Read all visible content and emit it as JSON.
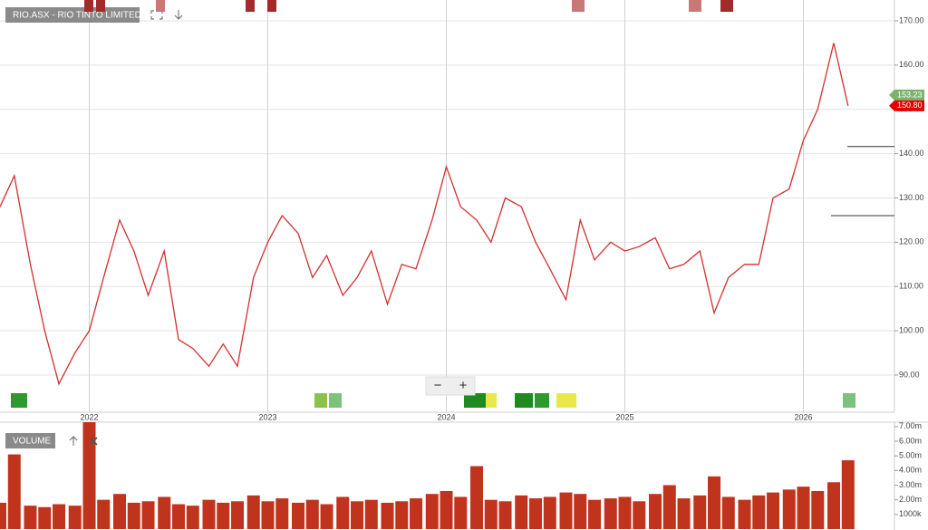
{
  "chart_data": [
    {
      "type": "line",
      "title": "RIO.ASX - RIO TINTO LIMITED",
      "x": [
        2021.5,
        2021.58,
        2021.67,
        2021.75,
        2021.83,
        2021.92,
        2022,
        2022.08,
        2022.17,
        2022.25,
        2022.33,
        2022.42,
        2022.5,
        2022.58,
        2022.67,
        2022.75,
        2022.83,
        2022.92,
        2023,
        2023.08,
        2023.17,
        2023.25,
        2023.33,
        2023.42,
        2023.5,
        2023.58,
        2023.67,
        2023.75,
        2023.83,
        2023.92,
        2024,
        2024.08,
        2024.17,
        2024.25,
        2024.33,
        2024.42,
        2024.5,
        2024.58,
        2024.67,
        2024.75,
        2024.83,
        2024.92,
        2025,
        2025.08,
        2025.17,
        2025.25,
        2025.33,
        2025.42,
        2025.5,
        2025.58,
        2025.67,
        2025.75,
        2025.83,
        2025.92,
        2026,
        2026.08,
        2026.17,
        2026.25
      ],
      "series": [
        {
          "color": "#d32f2f",
          "values": [
            128,
            135,
            115,
            100,
            88,
            95,
            100,
            112,
            125,
            118,
            108,
            118,
            98,
            96,
            92,
            97,
            92,
            112,
            120,
            126,
            122,
            112,
            117,
            108,
            112,
            118,
            106,
            115,
            114,
            125,
            137,
            128,
            125,
            120,
            130,
            128,
            120,
            114,
            107,
            125,
            116,
            120,
            118,
            119,
            121,
            114,
            115,
            118,
            104,
            112,
            115,
            115,
            130,
            132,
            143,
            150,
            165,
            150.8
          ]
        }
      ],
      "xlim": [
        2021.5,
        2026.51
      ],
      "xticks": [
        2022,
        2023,
        2024,
        2025,
        2026
      ],
      "ylim": [
        81.6,
        174.7
      ],
      "yticks": [
        {
          "value": 90,
          "label": "90.00"
        },
        {
          "value": 100,
          "label": "100.00"
        },
        {
          "value": 110,
          "label": "110.00"
        },
        {
          "value": 120,
          "label": "120.00"
        },
        {
          "value": 130,
          "label": "130.00"
        },
        {
          "value": 140,
          "label": "140.00"
        },
        {
          "value": 150,
          "label": "150.00"
        },
        {
          "value": 160,
          "label": "160.00"
        },
        {
          "value": 170,
          "label": "170.00"
        }
      ],
      "price_tags": [
        {
          "value": 153.23,
          "label": "153.23",
          "color": "#7cb36b"
        },
        {
          "value": 150.8,
          "label": "150.80",
          "color": "#e00000"
        }
      ],
      "levels": [
        141.6,
        126
      ],
      "grid": true,
      "zoom_out": "−",
      "zoom_in": "+"
    },
    {
      "type": "bar",
      "title": "VOLUME",
      "x": [
        2021.5,
        2021.58,
        2021.67,
        2021.75,
        2021.83,
        2021.92,
        2022,
        2022.08,
        2022.17,
        2022.25,
        2022.33,
        2022.42,
        2022.5,
        2022.58,
        2022.67,
        2022.75,
        2022.83,
        2022.92,
        2023,
        2023.08,
        2023.17,
        2023.25,
        2023.33,
        2023.42,
        2023.5,
        2023.58,
        2023.67,
        2023.75,
        2023.83,
        2023.92,
        2024,
        2024.08,
        2024.17,
        2024.25,
        2024.33,
        2024.42,
        2024.5,
        2024.58,
        2024.67,
        2024.75,
        2024.83,
        2024.92,
        2025,
        2025.08,
        2025.17,
        2025.25,
        2025.33,
        2025.42,
        2025.5,
        2025.58,
        2025.67,
        2025.75,
        2025.83,
        2025.92,
        2026,
        2026.08,
        2026.17,
        2026.25
      ],
      "series": [
        {
          "color": "#c0341d",
          "values": [
            1.8,
            5.1,
            1.6,
            1.5,
            1.7,
            1.6,
            7.3,
            2.0,
            2.4,
            1.8,
            1.9,
            2.2,
            1.7,
            1.6,
            2.0,
            1.8,
            1.9,
            2.3,
            1.9,
            2.1,
            1.8,
            2.0,
            1.7,
            2.2,
            1.9,
            2.0,
            1.8,
            1.9,
            2.1,
            2.4,
            2.6,
            2.2,
            4.3,
            2.0,
            1.9,
            2.3,
            2.1,
            2.2,
            2.5,
            2.4,
            2.0,
            2.1,
            2.2,
            1.9,
            2.4,
            3.0,
            2.1,
            2.3,
            3.6,
            2.2,
            2.0,
            2.3,
            2.5,
            2.7,
            2.9,
            2.6,
            3.2,
            4.7
          ]
        }
      ],
      "xlim": [
        2021.5,
        2026.51
      ],
      "ylim": [
        0,
        7.3
      ],
      "yticks": [
        {
          "value": 1,
          "label": "1000k"
        },
        {
          "value": 2,
          "label": "2.00m"
        },
        {
          "value": 3,
          "label": "3.00m"
        },
        {
          "value": 4,
          "label": "4.00m"
        },
        {
          "value": 5,
          "label": "5.00m"
        },
        {
          "value": 6,
          "label": "6.00m"
        },
        {
          "value": 7,
          "label": "7.00m"
        }
      ]
    }
  ]
}
